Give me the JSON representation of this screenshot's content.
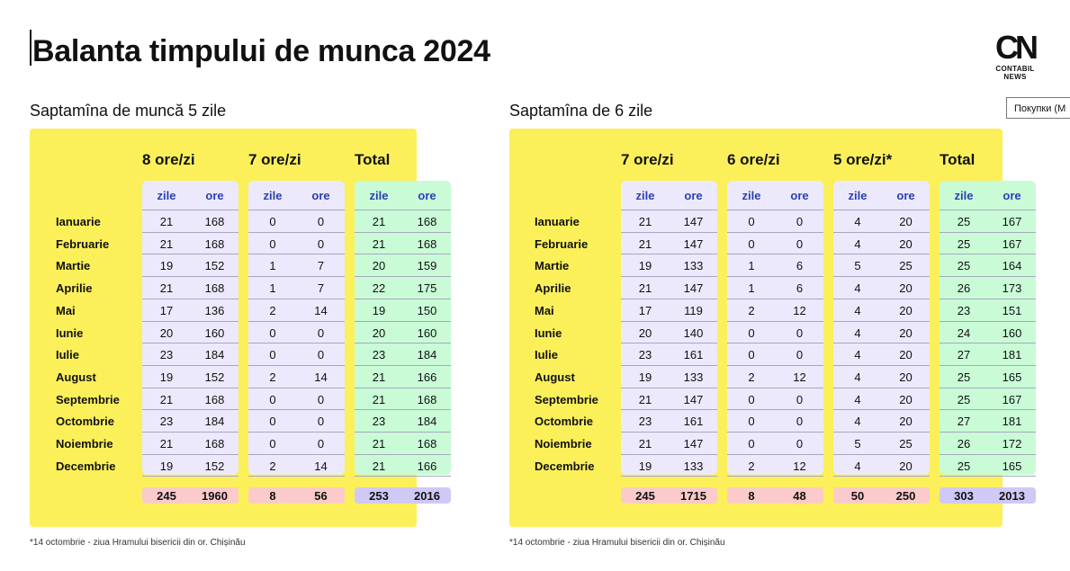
{
  "title": "Balanta timpului de munca 2024",
  "logo": {
    "mark": "CN",
    "text": "CONTABIL NEWS"
  },
  "popup_text": "Покупки (М",
  "left": {
    "title": "Saptamîna de muncă 5 zile",
    "groups": [
      "8 ore/zi",
      "7 ore/zi",
      "Total"
    ],
    "sub_labels": [
      "zile",
      "ore"
    ],
    "months": [
      "Ianuarie",
      "Februarie",
      "Martie",
      "Aprilie",
      "Mai",
      "Iunie",
      "Iulie",
      "August",
      "Septembrie",
      "Octombrie",
      "Noiembrie",
      "Decembrie"
    ],
    "rows": [
      [
        "21",
        "168",
        "0",
        "0",
        "21",
        "168"
      ],
      [
        "21",
        "168",
        "0",
        "0",
        "21",
        "168"
      ],
      [
        "19",
        "152",
        "1",
        "7",
        "20",
        "159"
      ],
      [
        "21",
        "168",
        "1",
        "7",
        "22",
        "175"
      ],
      [
        "17",
        "136",
        "2",
        "14",
        "19",
        "150"
      ],
      [
        "20",
        "160",
        "0",
        "0",
        "20",
        "160"
      ],
      [
        "23",
        "184",
        "0",
        "0",
        "23",
        "184"
      ],
      [
        "19",
        "152",
        "2",
        "14",
        "21",
        "166"
      ],
      [
        "21",
        "168",
        "0",
        "0",
        "21",
        "168"
      ],
      [
        "23",
        "184",
        "0",
        "0",
        "23",
        "184"
      ],
      [
        "21",
        "168",
        "0",
        "0",
        "21",
        "168"
      ],
      [
        "19",
        "152",
        "2",
        "14",
        "21",
        "166"
      ]
    ],
    "totals": [
      "245",
      "1960",
      "8",
      "56",
      "253",
      "2016"
    ],
    "footnote": "*14 octombrie - ziua Hramului bisericii din or. Chișinău"
  },
  "right": {
    "title": "Saptamîna de 6 zile",
    "groups": [
      "7 ore/zi",
      "6 ore/zi",
      "5 ore/zi*",
      "Total"
    ],
    "sub_labels": [
      "zile",
      "ore"
    ],
    "months": [
      "Ianuarie",
      "Februarie",
      "Martie",
      "Aprilie",
      "Mai",
      "Iunie",
      "Iulie",
      "August",
      "Septembrie",
      "Octombrie",
      "Noiembrie",
      "Decembrie"
    ],
    "rows": [
      [
        "21",
        "147",
        "0",
        "0",
        "4",
        "20",
        "25",
        "167"
      ],
      [
        "21",
        "147",
        "0",
        "0",
        "4",
        "20",
        "25",
        "167"
      ],
      [
        "19",
        "133",
        "1",
        "6",
        "5",
        "25",
        "25",
        "164"
      ],
      [
        "21",
        "147",
        "1",
        "6",
        "4",
        "20",
        "26",
        "173"
      ],
      [
        "17",
        "119",
        "2",
        "12",
        "4",
        "20",
        "23",
        "151"
      ],
      [
        "20",
        "140",
        "0",
        "0",
        "4",
        "20",
        "24",
        "160"
      ],
      [
        "23",
        "161",
        "0",
        "0",
        "4",
        "20",
        "27",
        "181"
      ],
      [
        "19",
        "133",
        "2",
        "12",
        "4",
        "20",
        "25",
        "165"
      ],
      [
        "21",
        "147",
        "0",
        "0",
        "4",
        "20",
        "25",
        "167"
      ],
      [
        "23",
        "161",
        "0",
        "0",
        "4",
        "20",
        "27",
        "181"
      ],
      [
        "21",
        "147",
        "0",
        "0",
        "5",
        "25",
        "26",
        "172"
      ],
      [
        "19",
        "133",
        "2",
        "12",
        "4",
        "20",
        "25",
        "165"
      ]
    ],
    "totals": [
      "245",
      "1715",
      "8",
      "48",
      "50",
      "250",
      "303",
      "2013"
    ],
    "footnote": "*14 octombrie - ziua Hramului bisericii din or. Chișinău"
  }
}
